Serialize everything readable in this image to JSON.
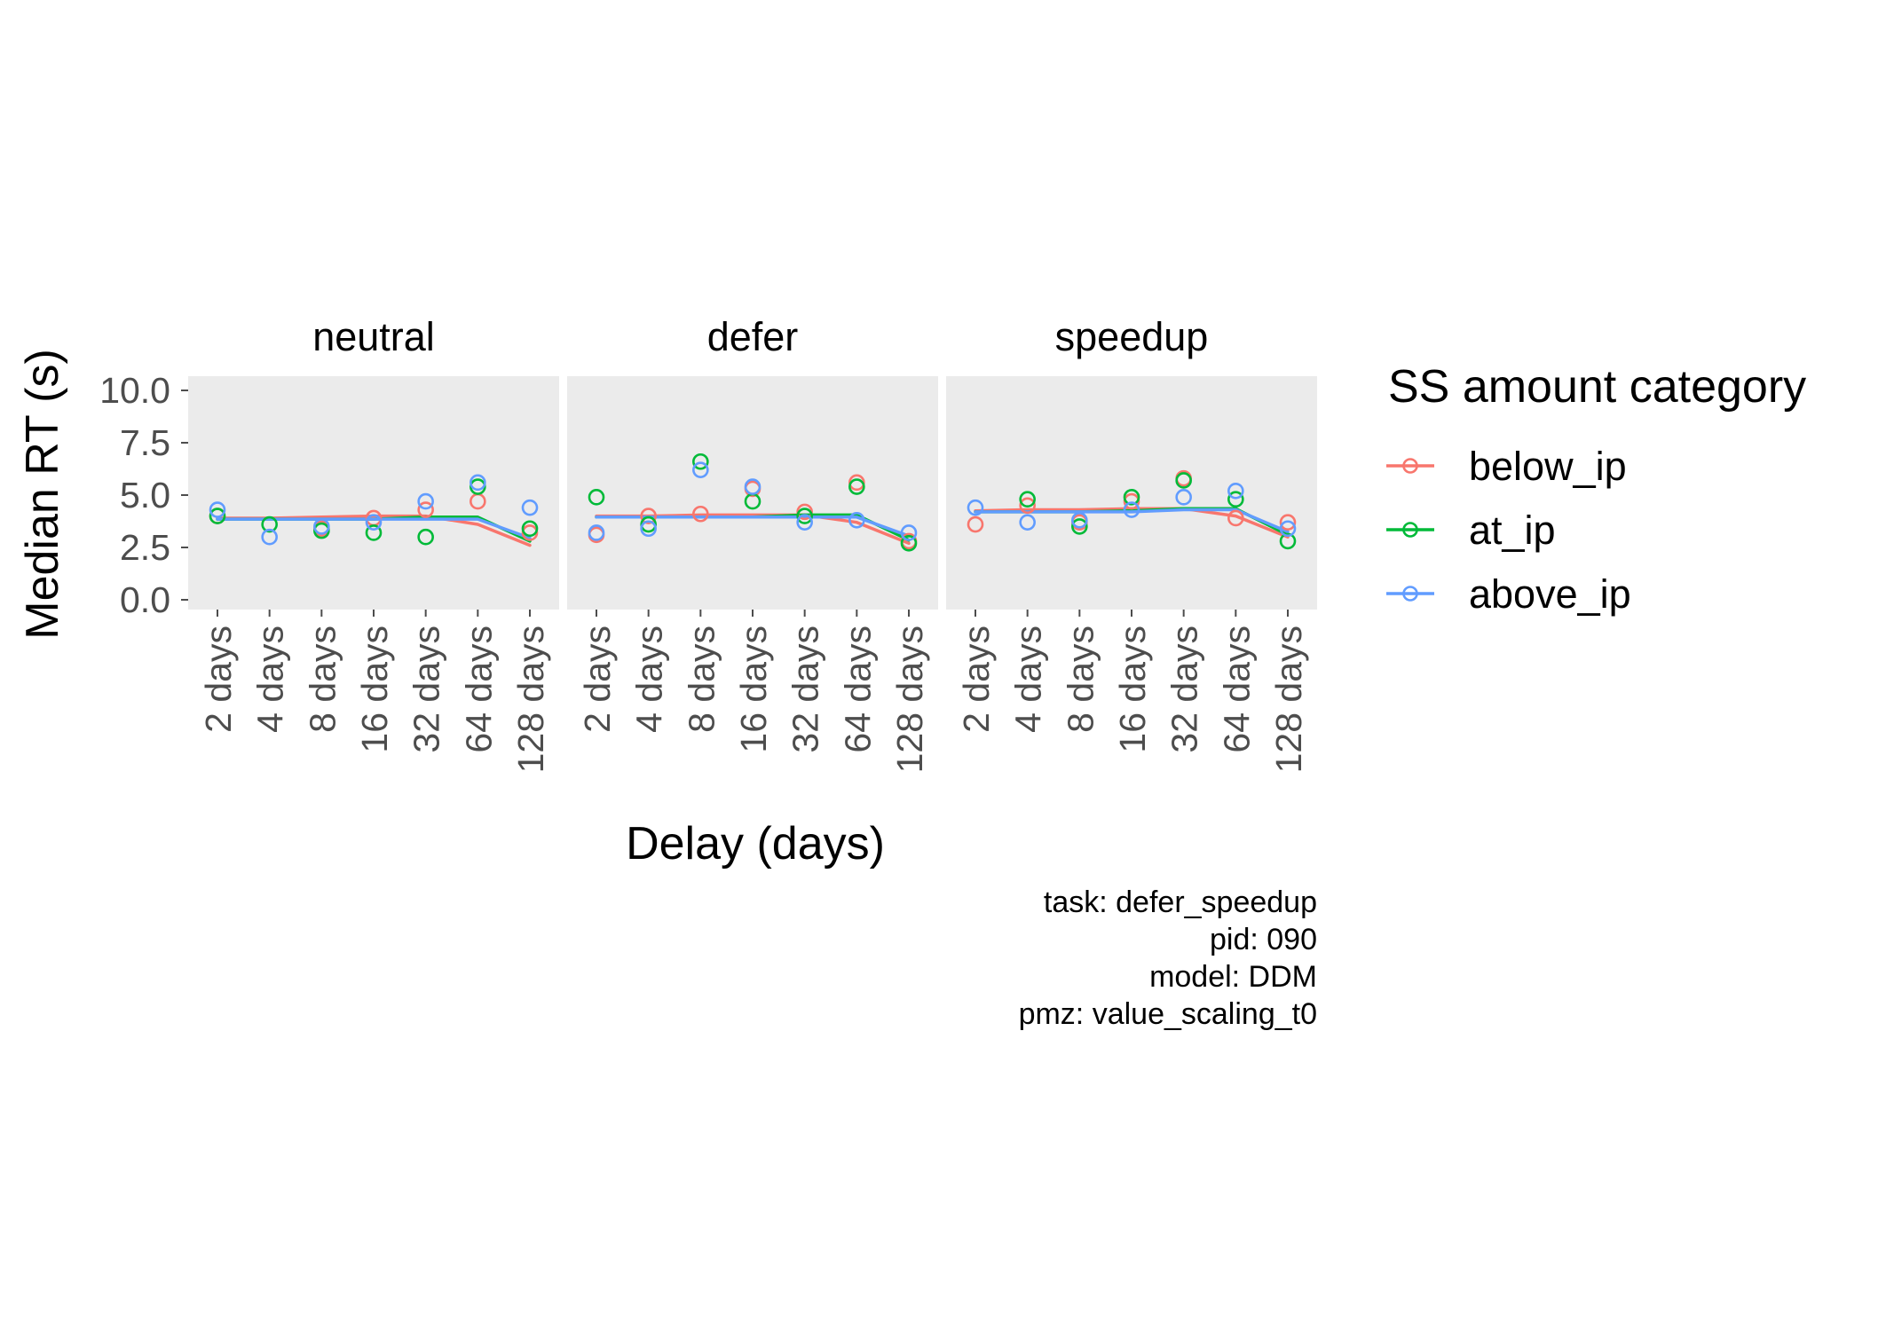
{
  "chart_data": {
    "type": "line",
    "ylabel": "Median RT (s)",
    "xlabel": "Delay (days)",
    "ylim": [
      0,
      10
    ],
    "yticks": [
      "0.0",
      "2.5",
      "5.0",
      "7.5",
      "10.0"
    ],
    "categories": [
      "2 days",
      "4 days",
      "8 days",
      "16 days",
      "32 days",
      "64 days",
      "128 days"
    ],
    "legend": {
      "title": "SS amount category",
      "position": "right"
    },
    "series_meta": [
      {
        "name": "below_ip",
        "color": "#F8766D"
      },
      {
        "name": "at_ip",
        "color": "#00BA38"
      },
      {
        "name": "above_ip",
        "color": "#619CFF"
      }
    ],
    "panels": [
      {
        "title": "neutral",
        "points": {
          "below_ip": [
            4.0,
            null,
            3.4,
            3.9,
            4.3,
            4.7,
            3.2
          ],
          "at_ip": [
            4.0,
            3.6,
            3.3,
            3.2,
            3.0,
            5.4,
            3.4
          ],
          "above_ip": [
            4.3,
            3.0,
            3.5,
            3.7,
            4.7,
            5.6,
            4.4
          ]
        },
        "lines": {
          "below_ip": [
            3.9,
            3.9,
            3.95,
            4.0,
            4.0,
            3.6,
            2.6
          ],
          "at_ip": [
            3.85,
            3.85,
            3.85,
            3.85,
            3.95,
            3.95,
            2.8
          ],
          "above_ip": [
            3.85,
            3.85,
            3.85,
            3.85,
            3.85,
            3.85,
            2.95
          ]
        }
      },
      {
        "title": "defer",
        "points": {
          "below_ip": [
            3.1,
            4.0,
            4.1,
            5.3,
            4.2,
            5.6,
            2.8
          ],
          "at_ip": [
            4.9,
            3.6,
            6.6,
            4.7,
            4.0,
            5.4,
            2.7
          ],
          "above_ip": [
            3.2,
            3.4,
            6.2,
            5.4,
            3.7,
            3.8,
            3.2
          ]
        },
        "lines": {
          "below_ip": [
            4.0,
            4.0,
            4.05,
            4.05,
            4.05,
            3.7,
            2.7
          ],
          "at_ip": [
            3.95,
            3.95,
            3.95,
            3.95,
            4.05,
            4.05,
            2.85
          ],
          "above_ip": [
            3.95,
            3.95,
            3.95,
            3.95,
            3.95,
            3.95,
            3.05
          ]
        }
      },
      {
        "title": "speedup",
        "points": {
          "below_ip": [
            3.6,
            4.5,
            3.7,
            4.7,
            5.8,
            3.9,
            3.7
          ],
          "at_ip": [
            null,
            4.8,
            3.5,
            4.9,
            5.7,
            4.8,
            2.8
          ],
          "above_ip": [
            4.4,
            3.7,
            3.8,
            4.3,
            4.9,
            5.2,
            3.4
          ]
        },
        "lines": {
          "below_ip": [
            4.25,
            4.3,
            4.3,
            4.35,
            4.35,
            4.0,
            3.0
          ],
          "at_ip": [
            4.2,
            4.2,
            4.2,
            4.25,
            4.35,
            4.35,
            3.1
          ],
          "above_ip": [
            4.2,
            4.2,
            4.2,
            4.2,
            4.3,
            4.3,
            3.25
          ]
        }
      }
    ],
    "grid": false,
    "panel_background": "#EBEBEB"
  },
  "caption": [
    "task: defer_speedup",
    "pid: 090",
    "model: DDM",
    "pmz: value_scaling_t0"
  ]
}
